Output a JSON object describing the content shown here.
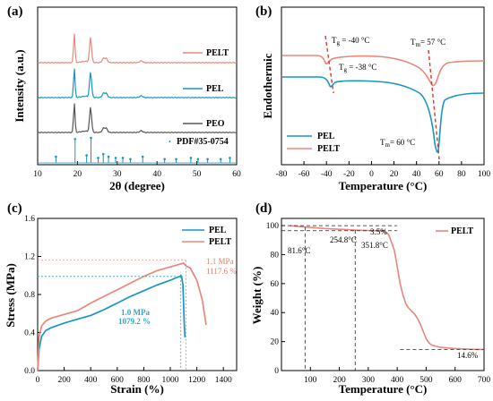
{
  "panels": {
    "a": {
      "label": "(a)"
    },
    "b": {
      "label": "(b)"
    },
    "c": {
      "label": "(c)"
    },
    "d": {
      "label": "(d)"
    }
  },
  "colors": {
    "pelt": "#e8877a",
    "pel": "#1796c6",
    "peo": "#555555",
    "ref": "#1796c6",
    "dash": "#222222"
  },
  "chart_data": [
    {
      "panel": "a",
      "type": "line",
      "xlabel": "2θ (degree)",
      "ylabel": "Intensity (a.u.)",
      "xlim": [
        10,
        60
      ],
      "xticks": [
        "10",
        "20",
        "30",
        "40",
        "50",
        "60"
      ],
      "series": [
        {
          "name": "PELT",
          "peaks": [
            19.2,
            23.3,
            26.5,
            36.0
          ],
          "offset": 3
        },
        {
          "name": "PEL",
          "peaks": [
            19.2,
            23.3,
            26.5,
            36.0
          ],
          "offset": 2
        },
        {
          "name": "PEO",
          "peaks": [
            19.2,
            23.3,
            26.5,
            36.0
          ],
          "offset": 1
        }
      ],
      "reference": {
        "name": "PDF#35-0754",
        "lines": [
          [
            14.6,
            0.25
          ],
          [
            19.4,
            0.95
          ],
          [
            22.3,
            0.3
          ],
          [
            23.4,
            1.0
          ],
          [
            25.2,
            0.2
          ],
          [
            26.5,
            0.35
          ],
          [
            27.8,
            0.25
          ],
          [
            29.6,
            0.2
          ],
          [
            31.4,
            0.2
          ],
          [
            33.3,
            0.15
          ],
          [
            36.4,
            0.25
          ],
          [
            41.9,
            0.15
          ],
          [
            44.8,
            0.15
          ],
          [
            48.5,
            0.2
          ],
          [
            50.3,
            0.15
          ],
          [
            52.7,
            0.15
          ],
          [
            56.0,
            0.15
          ],
          [
            58.3,
            0.2
          ]
        ]
      }
    },
    {
      "panel": "b",
      "type": "line",
      "xlabel": "Temperature (°C)",
      "ylabel": "Endothermic",
      "xlim": [
        -80,
        100
      ],
      "xticks": [
        "-80",
        "-60",
        "-40",
        "-20",
        "0",
        "20",
        "40",
        "60",
        "80",
        "100"
      ],
      "series": [
        {
          "name": "PEL",
          "Tg": -38,
          "Tm": 60
        },
        {
          "name": "PELT",
          "Tg": -40,
          "Tm": 57
        }
      ],
      "annotations": {
        "tg_pelt": {
          "sym": "T",
          "sub": "g",
          "val": " = -40 °C"
        },
        "tg_pel": {
          "sym": "T",
          "sub": "g",
          "val": " = -38 °C"
        },
        "tm_pelt": {
          "sym": "T",
          "sub": "m",
          "val": "= 57 °C"
        },
        "tm_pel": {
          "sym": "T",
          "sub": "m",
          "val": "= 60 °C"
        }
      }
    },
    {
      "panel": "c",
      "type": "line",
      "xlabel": "Strain (%)",
      "ylabel": "Stress (MPa)",
      "xlim": [
        0,
        1500
      ],
      "ylim": [
        0,
        1.6
      ],
      "xticks": [
        "0",
        "200",
        "400",
        "600",
        "800",
        "1000",
        "1200",
        "1400"
      ],
      "yticks": [
        "0.0",
        "0.4",
        "0.8",
        "1.2",
        "1.6"
      ],
      "series": [
        {
          "name": "PEL",
          "x": [
            0,
            10,
            30,
            60,
            100,
            200,
            300,
            400,
            500,
            600,
            700,
            800,
            900,
            1000,
            1050,
            1075,
            1079.2,
            1085,
            1095,
            1100,
            1105,
            1110
          ],
          "y": [
            0,
            0.22,
            0.36,
            0.42,
            0.45,
            0.5,
            0.54,
            0.58,
            0.64,
            0.71,
            0.78,
            0.84,
            0.9,
            0.95,
            0.98,
            0.99,
            1.0,
            0.99,
            0.9,
            0.7,
            0.5,
            0.35
          ]
        },
        {
          "name": "PELT",
          "x": [
            0,
            10,
            30,
            60,
            100,
            200,
            300,
            400,
            500,
            600,
            700,
            800,
            900,
            1000,
            1050,
            1100,
            1117.6,
            1150,
            1200,
            1240,
            1270
          ],
          "y": [
            0,
            0.35,
            0.47,
            0.52,
            0.55,
            0.59,
            0.63,
            0.71,
            0.78,
            0.85,
            0.92,
            0.99,
            1.05,
            1.09,
            1.11,
            1.13,
            1.1,
            1.08,
            0.95,
            0.75,
            0.48
          ]
        }
      ],
      "annotations": {
        "pelt_mpa": "1.1 MPa",
        "pelt_pct": "1117.6 %",
        "pel_mpa": "1.0 MPa",
        "pel_pct": "1079.2 %"
      }
    },
    {
      "panel": "d",
      "type": "line",
      "xlabel": "Temperature (°C)",
      "ylabel": "Weight (%)",
      "xlim": [
        0,
        700
      ],
      "ylim": [
        0,
        105
      ],
      "xticks": [
        "100",
        "200",
        "300",
        "400",
        "500",
        "600",
        "700"
      ],
      "yticks": [
        "0",
        "20",
        "40",
        "60",
        "80",
        "100"
      ],
      "series": [
        {
          "name": "PELT",
          "x": [
            30,
            81.6,
            150,
            254.8,
            300,
            351.8,
            370,
            390,
            400,
            410,
            420,
            430,
            440,
            450,
            460,
            470,
            480,
            490,
            500,
            510,
            520,
            550,
            600,
            650,
            700
          ],
          "y": [
            100,
            99.0,
            98.0,
            97.0,
            96.6,
            96.5,
            94,
            83,
            72,
            60,
            52,
            46,
            43,
            41,
            39,
            36,
            32,
            27,
            22,
            19,
            17.5,
            16,
            15.2,
            14.7,
            14.6
          ]
        }
      ],
      "annotations": {
        "t1": "81.6°C",
        "t2": "254.8°C",
        "t3": "351.8°C",
        "loss": "3.5%",
        "residue": "14.6%"
      }
    }
  ]
}
